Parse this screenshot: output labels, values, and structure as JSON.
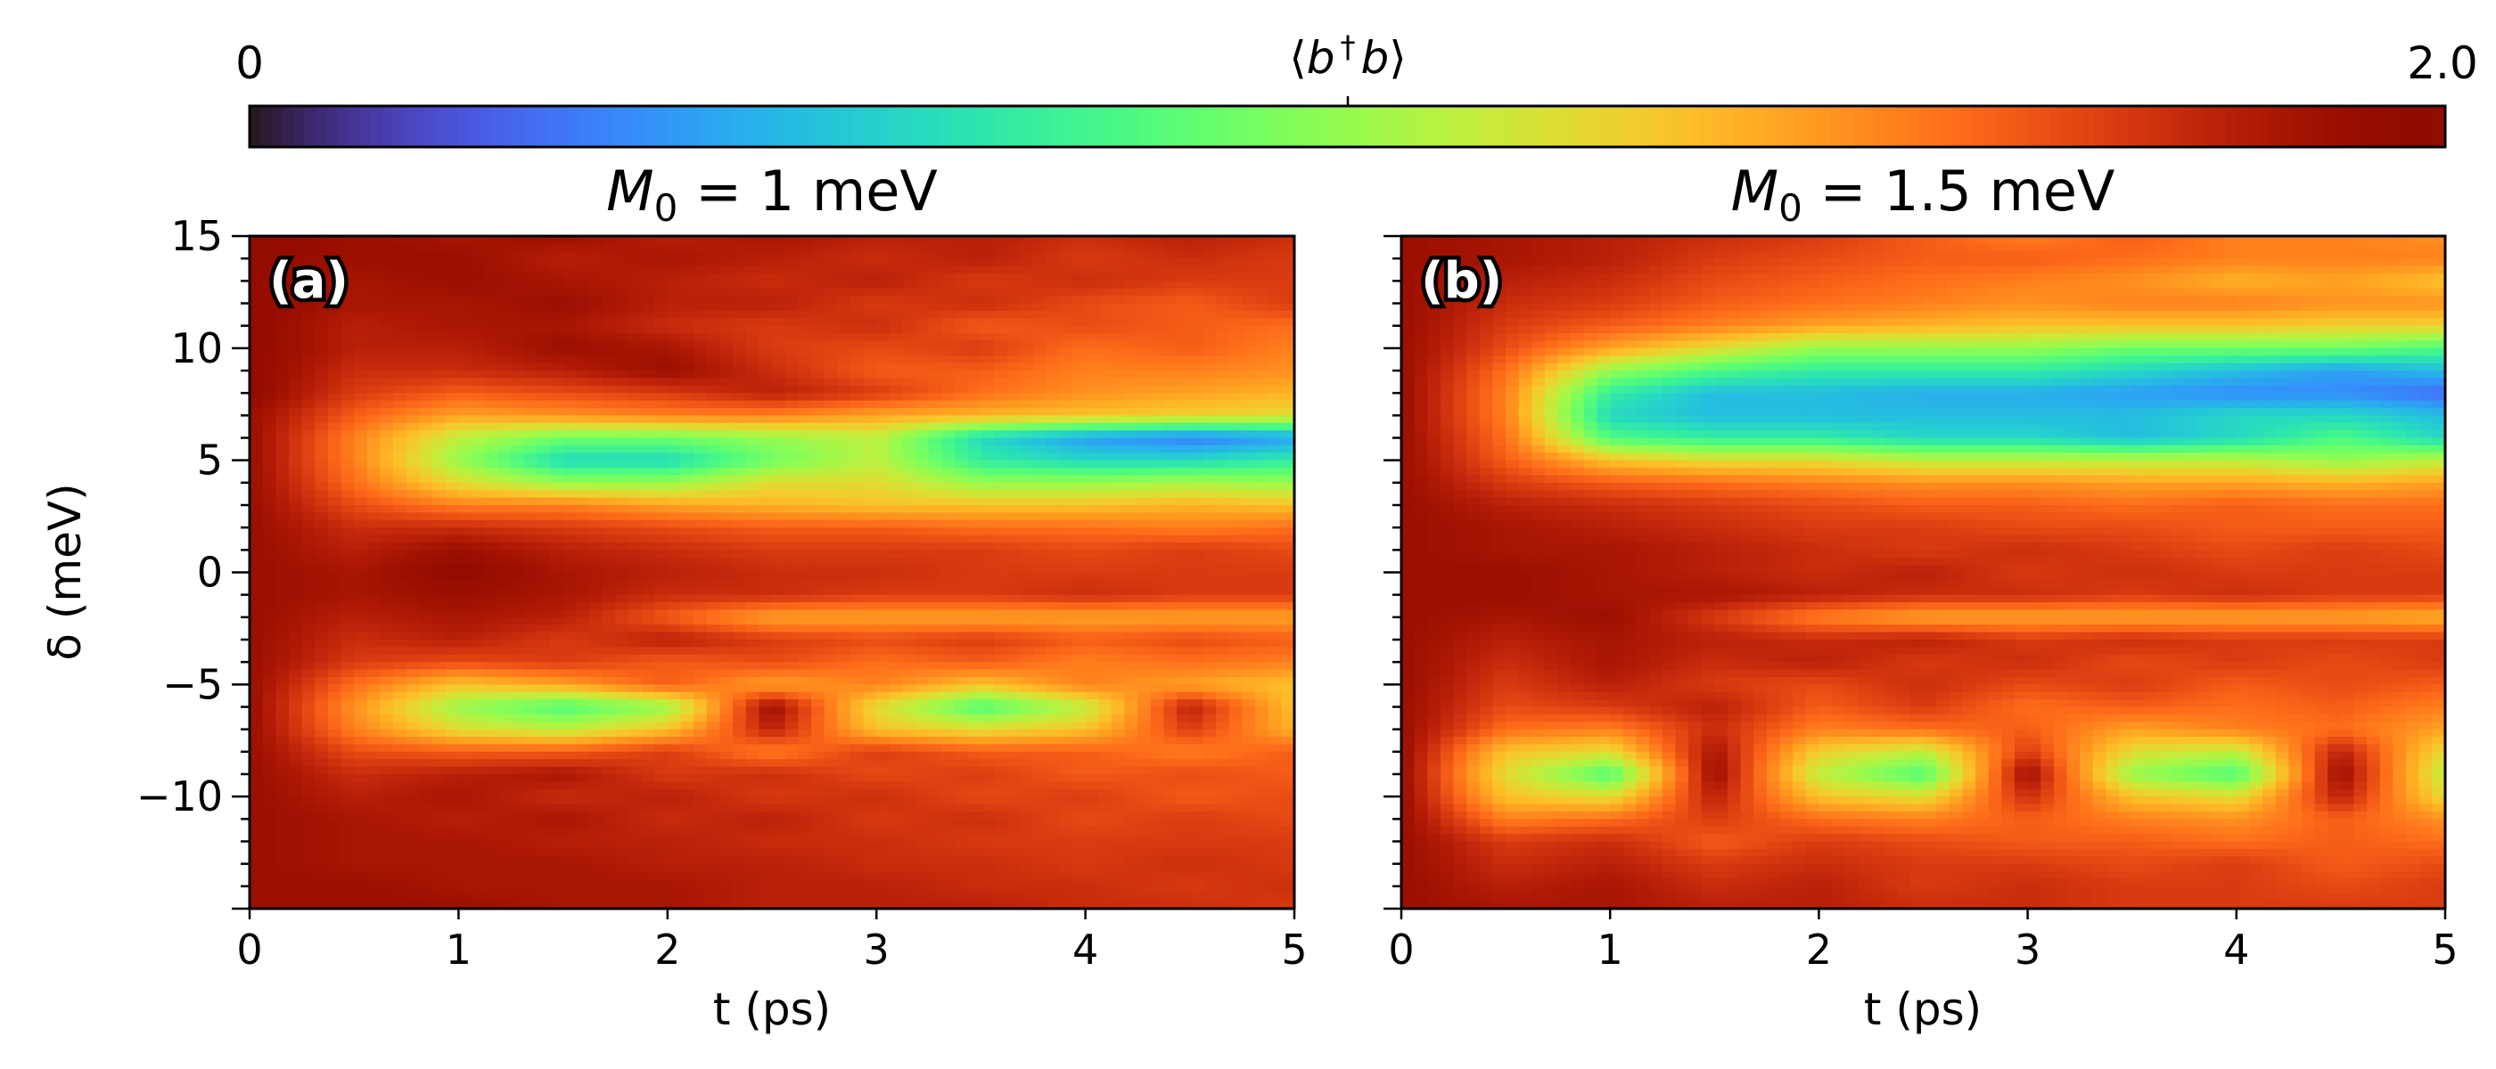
{
  "colorbar": {
    "label": "⟨b†b⟩",
    "label_parts": {
      "open": "⟨",
      "b1": "b",
      "dagger": "†",
      "b2": "b",
      "close": "⟩"
    },
    "tick_labels": [
      "0",
      "2.0"
    ],
    "range": [
      0,
      2.0
    ],
    "colormap": "turbo"
  },
  "chart_data": [
    {
      "type": "heatmap",
      "panel_label": "(a)",
      "title": "M0 = 1 meV",
      "title_parts": {
        "M": "M",
        "sub": "0",
        "rest": " = 1 meV"
      },
      "xlabel": "t (ps)",
      "ylabel": "δ (meV)",
      "xlim": [
        0,
        5
      ],
      "ylim": [
        -15,
        15
      ],
      "xticks": [
        "0",
        "1",
        "2",
        "3",
        "4",
        "5"
      ],
      "yticks": [
        "15",
        "10",
        "5",
        "0",
        "−5",
        "−10"
      ],
      "zlim": [
        0,
        2.0
      ],
      "colormap": "turbo",
      "t": [
        0,
        0.5,
        1,
        1.5,
        2,
        2.5,
        3,
        3.5,
        4,
        4.5,
        5
      ],
      "delta": [
        15,
        14,
        13,
        12,
        11,
        10,
        9,
        8,
        7,
        6,
        5,
        4,
        3,
        2,
        1,
        0,
        -1,
        -2,
        -3,
        -4,
        -5,
        -6,
        -7,
        -8,
        -9,
        -10,
        -11,
        -12,
        -13,
        -14,
        -15
      ],
      "z": [
        [
          1.95,
          1.9,
          1.85,
          1.9,
          1.8,
          1.85,
          1.8,
          1.8,
          1.75,
          1.8,
          1.75
        ],
        [
          1.95,
          1.9,
          1.9,
          1.8,
          1.85,
          1.8,
          1.75,
          1.8,
          1.7,
          1.75,
          1.7
        ],
        [
          1.95,
          1.85,
          1.9,
          1.85,
          1.8,
          1.75,
          1.8,
          1.7,
          1.75,
          1.7,
          1.7
        ],
        [
          1.95,
          1.85,
          1.85,
          1.9,
          1.8,
          1.8,
          1.7,
          1.75,
          1.65,
          1.6,
          1.7
        ],
        [
          1.95,
          1.8,
          1.85,
          1.85,
          1.75,
          1.7,
          1.75,
          1.6,
          1.65,
          1.6,
          1.55
        ],
        [
          1.95,
          1.8,
          1.8,
          1.9,
          1.85,
          1.7,
          1.65,
          1.7,
          1.55,
          1.6,
          1.5
        ],
        [
          1.95,
          1.75,
          1.75,
          1.8,
          1.9,
          1.75,
          1.6,
          1.6,
          1.5,
          1.5,
          1.45
        ],
        [
          1.95,
          1.7,
          1.6,
          1.65,
          1.7,
          1.8,
          1.7,
          1.55,
          1.45,
          1.4,
          1.35
        ],
        [
          1.9,
          1.6,
          1.4,
          1.45,
          1.5,
          1.5,
          1.4,
          1.35,
          1.3,
          1.25,
          1.2
        ],
        [
          1.9,
          1.5,
          1.1,
          0.9,
          0.9,
          1.0,
          1.1,
          0.6,
          0.4,
          0.3,
          0.4
        ],
        [
          1.9,
          1.5,
          1.0,
          0.6,
          0.6,
          0.9,
          1.1,
          0.7,
          0.6,
          0.6,
          0.7
        ],
        [
          1.9,
          1.55,
          1.2,
          1.0,
          1.0,
          1.2,
          1.2,
          1.0,
          1.0,
          1.05,
          1.0
        ],
        [
          1.9,
          1.65,
          1.5,
          1.5,
          1.4,
          1.35,
          1.3,
          1.3,
          1.3,
          1.35,
          1.3
        ],
        [
          1.9,
          1.75,
          1.75,
          1.7,
          1.65,
          1.6,
          1.6,
          1.55,
          1.55,
          1.5,
          1.55
        ],
        [
          1.9,
          1.8,
          1.9,
          1.8,
          1.75,
          1.7,
          1.7,
          1.7,
          1.65,
          1.7,
          1.65
        ],
        [
          1.9,
          1.85,
          1.95,
          1.85,
          1.8,
          1.75,
          1.75,
          1.7,
          1.7,
          1.7,
          1.7
        ],
        [
          1.9,
          1.85,
          1.9,
          1.85,
          1.75,
          1.75,
          1.7,
          1.7,
          1.75,
          1.7,
          1.7
        ],
        [
          1.9,
          1.8,
          1.85,
          1.8,
          1.6,
          1.4,
          1.4,
          1.4,
          1.4,
          1.4,
          1.4
        ],
        [
          1.9,
          1.75,
          1.8,
          1.7,
          1.8,
          1.7,
          1.65,
          1.7,
          1.6,
          1.65,
          1.6
        ],
        [
          1.9,
          1.7,
          1.65,
          1.7,
          1.6,
          1.65,
          1.55,
          1.6,
          1.5,
          1.55,
          1.5
        ],
        [
          1.9,
          1.55,
          1.3,
          1.4,
          1.6,
          1.4,
          1.5,
          1.3,
          1.5,
          1.4,
          1.3
        ],
        [
          1.9,
          1.45,
          1.0,
          0.8,
          1.0,
          1.9,
          1.2,
          0.8,
          1.1,
          1.8,
          1.3
        ],
        [
          1.9,
          1.5,
          1.2,
          1.1,
          1.3,
          1.8,
          1.3,
          1.2,
          1.3,
          1.7,
          1.35
        ],
        [
          1.9,
          1.65,
          1.6,
          1.6,
          1.7,
          1.5,
          1.7,
          1.6,
          1.6,
          1.5,
          1.6
        ],
        [
          1.9,
          1.75,
          1.8,
          1.85,
          1.7,
          1.75,
          1.65,
          1.7,
          1.6,
          1.65,
          1.6
        ],
        [
          1.9,
          1.8,
          1.85,
          1.75,
          1.8,
          1.7,
          1.75,
          1.65,
          1.7,
          1.6,
          1.65
        ],
        [
          1.9,
          1.85,
          1.8,
          1.85,
          1.75,
          1.8,
          1.7,
          1.75,
          1.65,
          1.7,
          1.65
        ],
        [
          1.9,
          1.85,
          1.85,
          1.8,
          1.8,
          1.75,
          1.75,
          1.7,
          1.7,
          1.7,
          1.7
        ],
        [
          1.9,
          1.85,
          1.85,
          1.85,
          1.8,
          1.8,
          1.75,
          1.75,
          1.7,
          1.75,
          1.7
        ],
        [
          1.9,
          1.9,
          1.85,
          1.85,
          1.85,
          1.8,
          1.8,
          1.75,
          1.75,
          1.7,
          1.75
        ],
        [
          1.9,
          1.9,
          1.9,
          1.85,
          1.85,
          1.8,
          1.8,
          1.8,
          1.75,
          1.75,
          1.7
        ]
      ]
    },
    {
      "type": "heatmap",
      "panel_label": "(b)",
      "title": "M0 = 1.5 meV",
      "title_parts": {
        "M": "M",
        "sub": "0",
        "rest": " = 1.5 meV"
      },
      "xlabel": "t (ps)",
      "xlim": [
        0,
        5
      ],
      "ylim": [
        -15,
        15
      ],
      "xticks": [
        "0",
        "1",
        "2",
        "3",
        "4",
        "5"
      ],
      "zlim": [
        0,
        2.0
      ],
      "colormap": "turbo",
      "t": [
        0,
        0.5,
        1,
        1.5,
        2,
        2.5,
        3,
        3.5,
        4,
        4.5,
        5
      ],
      "delta": [
        15,
        14,
        13,
        12,
        11,
        10,
        9,
        8,
        7,
        6,
        5,
        4,
        3,
        2,
        1,
        0,
        -1,
        -2,
        -3,
        -4,
        -5,
        -6,
        -7,
        -8,
        -9,
        -10,
        -11,
        -12,
        -13,
        -14,
        -15
      ],
      "z": [
        [
          1.9,
          1.85,
          1.8,
          1.75,
          1.7,
          1.6,
          1.5,
          1.6,
          1.5,
          1.5,
          1.45
        ],
        [
          1.9,
          1.85,
          1.8,
          1.7,
          1.65,
          1.6,
          1.6,
          1.55,
          1.5,
          1.5,
          1.5
        ],
        [
          1.9,
          1.8,
          1.75,
          1.65,
          1.6,
          1.55,
          1.5,
          1.45,
          1.35,
          1.4,
          1.3
        ],
        [
          1.9,
          1.75,
          1.7,
          1.6,
          1.55,
          1.5,
          1.45,
          1.5,
          1.5,
          1.45,
          1.45
        ],
        [
          1.9,
          1.7,
          1.6,
          1.5,
          1.4,
          1.35,
          1.3,
          1.3,
          1.3,
          1.25,
          1.25
        ],
        [
          1.9,
          1.65,
          1.4,
          1.2,
          1.0,
          1.0,
          1.0,
          0.9,
          0.9,
          0.9,
          0.8
        ],
        [
          1.9,
          1.55,
          1.0,
          0.8,
          0.7,
          0.7,
          0.7,
          0.6,
          0.5,
          0.4,
          0.5
        ],
        [
          1.9,
          1.5,
          0.7,
          0.5,
          0.5,
          0.45,
          0.45,
          0.4,
          0.35,
          0.35,
          0.25
        ],
        [
          1.9,
          1.5,
          0.6,
          0.5,
          0.5,
          0.5,
          0.5,
          0.5,
          0.6,
          0.6,
          0.5
        ],
        [
          1.9,
          1.55,
          0.8,
          0.7,
          0.7,
          0.6,
          0.6,
          0.5,
          0.6,
          0.8,
          0.6
        ],
        [
          1.9,
          1.6,
          1.3,
          1.2,
          1.2,
          1.1,
          1.1,
          1.1,
          1.1,
          1.0,
          1.1
        ],
        [
          1.9,
          1.7,
          1.6,
          1.55,
          1.5,
          1.45,
          1.45,
          1.4,
          1.4,
          1.35,
          1.4
        ],
        [
          1.9,
          1.8,
          1.75,
          1.7,
          1.65,
          1.6,
          1.6,
          1.55,
          1.6,
          1.55,
          1.55
        ],
        [
          1.9,
          1.85,
          1.8,
          1.75,
          1.7,
          1.7,
          1.65,
          1.65,
          1.6,
          1.6,
          1.6
        ],
        [
          1.9,
          1.85,
          1.85,
          1.8,
          1.75,
          1.7,
          1.75,
          1.7,
          1.65,
          1.7,
          1.65
        ],
        [
          1.9,
          1.9,
          1.85,
          1.8,
          1.75,
          1.8,
          1.7,
          1.75,
          1.7,
          1.7,
          1.7
        ],
        [
          1.9,
          1.9,
          1.85,
          1.85,
          1.8,
          1.75,
          1.75,
          1.7,
          1.75,
          1.7,
          1.7
        ],
        [
          1.9,
          1.85,
          1.9,
          1.7,
          1.5,
          1.4,
          1.4,
          1.4,
          1.4,
          1.4,
          1.35
        ],
        [
          1.9,
          1.8,
          1.85,
          1.8,
          1.75,
          1.8,
          1.7,
          1.75,
          1.7,
          1.7,
          1.7
        ],
        [
          1.9,
          1.75,
          1.85,
          1.75,
          1.8,
          1.7,
          1.75,
          1.65,
          1.7,
          1.65,
          1.7
        ],
        [
          1.9,
          1.7,
          1.8,
          1.7,
          1.65,
          1.75,
          1.65,
          1.7,
          1.6,
          1.65,
          1.6
        ],
        [
          1.9,
          1.65,
          1.7,
          1.8,
          1.6,
          1.7,
          1.55,
          1.6,
          1.55,
          1.6,
          1.5
        ],
        [
          1.9,
          1.55,
          1.5,
          1.75,
          1.5,
          1.55,
          1.6,
          1.4,
          1.5,
          1.55,
          1.4
        ],
        [
          1.9,
          1.3,
          1.2,
          1.85,
          1.25,
          1.1,
          1.7,
          1.2,
          1.1,
          1.8,
          1.2
        ],
        [
          1.9,
          1.2,
          0.8,
          1.9,
          1.1,
          0.8,
          1.9,
          1.0,
          0.8,
          1.9,
          1.1
        ],
        [
          1.9,
          1.3,
          1.2,
          1.8,
          1.3,
          1.2,
          1.75,
          1.3,
          1.2,
          1.8,
          1.2
        ],
        [
          1.9,
          1.5,
          1.55,
          1.7,
          1.55,
          1.5,
          1.6,
          1.5,
          1.45,
          1.6,
          1.45
        ],
        [
          1.9,
          1.7,
          1.75,
          1.6,
          1.7,
          1.65,
          1.6,
          1.6,
          1.55,
          1.6,
          1.55
        ],
        [
          1.9,
          1.75,
          1.8,
          1.7,
          1.75,
          1.7,
          1.7,
          1.65,
          1.7,
          1.6,
          1.65
        ],
        [
          1.9,
          1.8,
          1.85,
          1.75,
          1.8,
          1.7,
          1.75,
          1.7,
          1.7,
          1.65,
          1.7
        ],
        [
          1.9,
          1.85,
          1.85,
          1.8,
          1.8,
          1.75,
          1.75,
          1.7,
          1.7,
          1.7,
          1.7
        ]
      ]
    }
  ]
}
